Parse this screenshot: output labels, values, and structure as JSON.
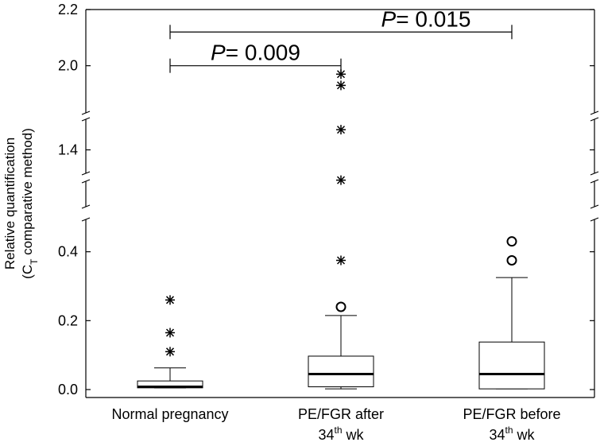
{
  "chart_data": {
    "type": "boxplot",
    "title": "",
    "xlabel": "",
    "ylabel_line1": "Relative quantification",
    "ylabel_line2_prefix": "(C",
    "ylabel_line2_sub": "T",
    "ylabel_line2_suffix": " comparative method)",
    "y_axis_segments": [
      {
        "range": [
          0.0,
          0.45
        ],
        "ticks": [
          {
            "value": 0.0,
            "label": "0.0"
          },
          {
            "value": 0.2,
            "label": "0.2"
          },
          {
            "value": 0.4,
            "label": "0.4"
          }
        ]
      },
      {
        "range": [
          1.35,
          1.45
        ],
        "ticks": [
          {
            "value": 1.4,
            "label": "1.4"
          }
        ]
      },
      {
        "range": [
          1.9,
          2.2
        ],
        "ticks": [
          {
            "value": 2.0,
            "label": "2.0"
          },
          {
            "value": 2.2,
            "label": "2.2"
          }
        ]
      }
    ],
    "groups": [
      {
        "label_line1": "Normal pregnancy",
        "label_line2_pre": "",
        "label_line2_sup": "",
        "label_line2_post": "",
        "q1": 0.005,
        "median": 0.008,
        "q3": 0.025,
        "whisker_low": 0.005,
        "whisker_high": 0.063,
        "outliers_circle": [],
        "outliers_star": [
          0.11,
          0.165,
          0.26
        ]
      },
      {
        "label_line1": "PE/FGR after",
        "label_line2_pre": "34",
        "label_line2_sup": "th",
        "label_line2_post": " wk",
        "q1": 0.008,
        "median": 0.045,
        "q3": 0.097,
        "whisker_low": 0.002,
        "whisker_high": 0.215,
        "outliers_circle": [
          0.24
        ],
        "outliers_star": [
          0.375,
          1.37,
          1.42,
          1.93,
          1.97
        ]
      },
      {
        "label_line1": "PE/FGR before",
        "label_line2_pre": "34",
        "label_line2_sup": "th",
        "label_line2_post": " wk",
        "q1": 0.002,
        "median": 0.045,
        "q3": 0.138,
        "whisker_low": 0.002,
        "whisker_high": 0.325,
        "outliers_circle": [
          0.375,
          0.43
        ],
        "outliers_star": []
      }
    ],
    "significance": [
      {
        "from_group": 0,
        "to_group": 1,
        "label_italic": "P",
        "label_rest": "= 0.009",
        "y_value": 2.0
      },
      {
        "from_group": 0,
        "to_group": 2,
        "label_italic": "P",
        "label_rest": "= 0.015",
        "y_value": 2.12
      }
    ]
  }
}
